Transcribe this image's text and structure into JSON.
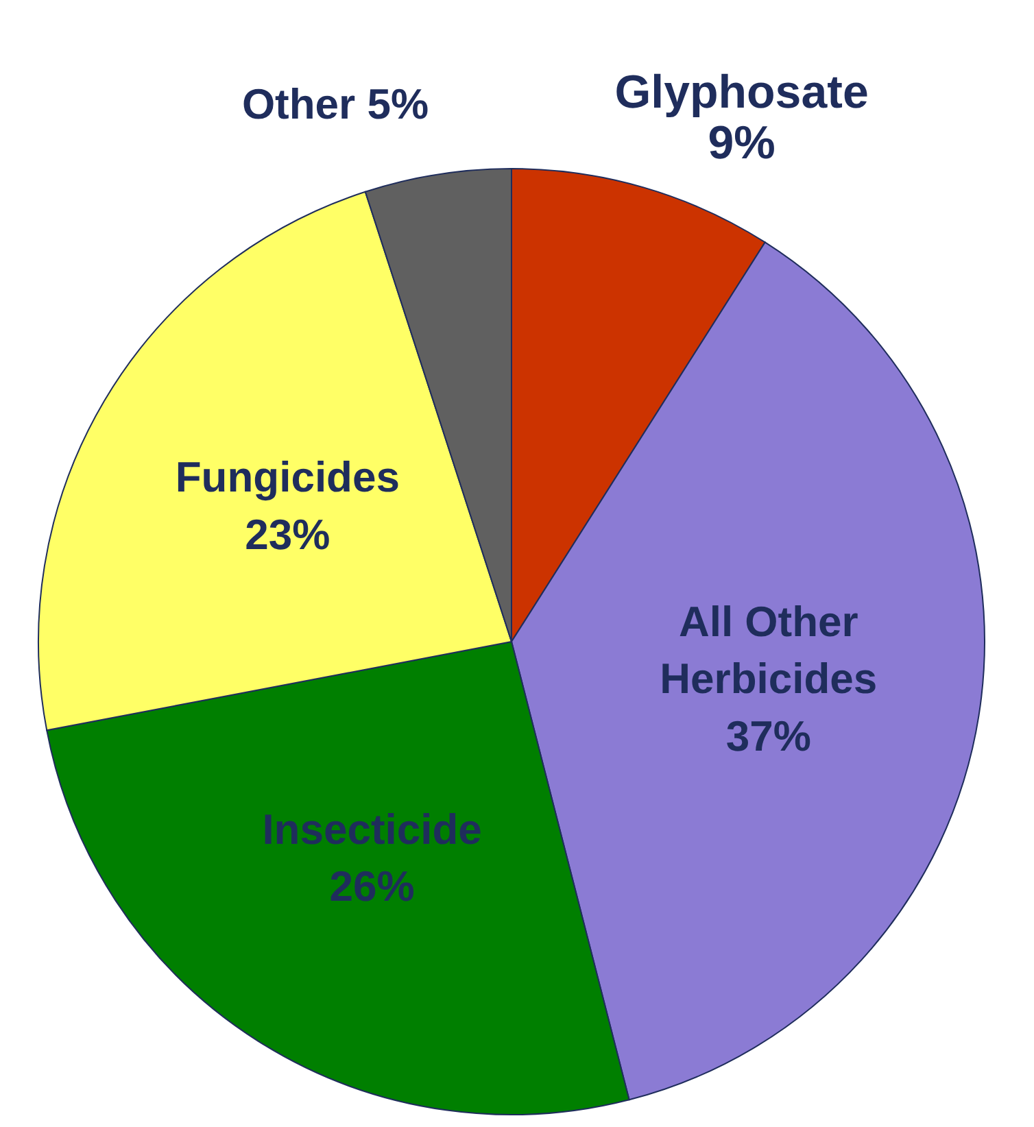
{
  "chart_data": {
    "type": "pie",
    "categories": [
      "Glyphosate",
      "All Other Herbicides",
      "Insecticide",
      "Fungicides",
      "Other"
    ],
    "values": [
      9,
      37,
      26,
      23,
      5
    ],
    "value_labels": [
      "9%",
      "37%",
      "26%",
      "23%",
      "5%"
    ],
    "colors": [
      "#cc3300",
      "#8b7bd4",
      "#007f00",
      "#ffff66",
      "#606060"
    ],
    "legend": false
  }
}
